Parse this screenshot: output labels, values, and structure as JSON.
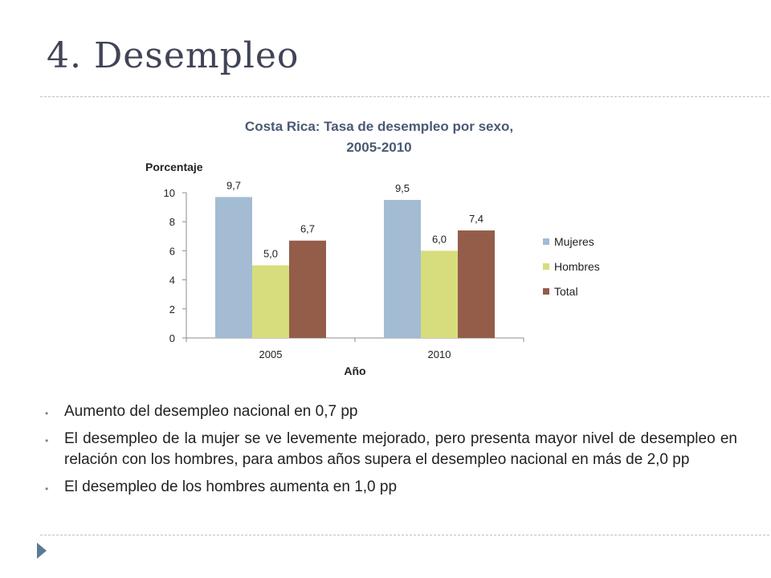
{
  "slide": {
    "title": "4. Desempleo"
  },
  "bullets": [
    "Aumento del desempleo nacional en 0,7 pp",
    "El desempleo de la mujer se ve levemente mejorado, pero presenta mayor nivel de desempleo en relación con los hombres, para ambos años supera el desempleo nacional en más de 2,0 pp",
    "El desempleo de los hombres aumenta en 1,0 pp"
  ],
  "chart_data": {
    "type": "bar",
    "title_line1": "Costa Rica: Tasa de desempleo por sexo,",
    "title_line2": "2005-2010",
    "ylabel": "Porcentaje",
    "xlabel": "Año",
    "categories": [
      "2005",
      "2010"
    ],
    "ylim": [
      0,
      10
    ],
    "yticks": [
      0,
      2,
      4,
      6,
      8,
      10
    ],
    "grid": false,
    "legend_position": "right",
    "series": [
      {
        "name": "Mujeres",
        "values": [
          9.7,
          9.5
        ],
        "labels": [
          "9,7",
          "9,5"
        ],
        "color": "#a3bcd3"
      },
      {
        "name": "Hombres",
        "values": [
          5.0,
          6.0
        ],
        "labels": [
          "5,0",
          "6,0"
        ],
        "color": "#d7dd7c"
      },
      {
        "name": "Total",
        "values": [
          6.7,
          7.4
        ],
        "labels": [
          "6,7",
          "7,4"
        ],
        "color": "#935d4a"
      }
    ],
    "title_color": "#4a5a74"
  }
}
